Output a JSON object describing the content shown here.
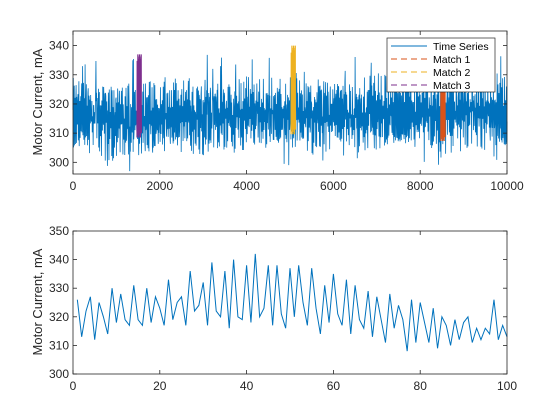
{
  "colors": {
    "series": "#0072bd",
    "match1": "#d95319",
    "match2": "#edb120",
    "match3": "#7e2f8e",
    "axis": "#262626",
    "background": "#ffffff"
  },
  "chart_data": [
    {
      "type": "line",
      "title": "",
      "xlabel": "",
      "ylabel": "Motor Current, mA",
      "xlim": [
        0,
        10000
      ],
      "ylim": [
        296,
        345
      ],
      "xticks": [
        0,
        2000,
        4000,
        6000,
        8000,
        10000
      ],
      "yticks": [
        300,
        310,
        320,
        330,
        340
      ],
      "xtick_labels": [
        "0",
        "2000",
        "4000",
        "6000",
        "8000",
        "10000"
      ],
      "ytick_labels": [
        "300",
        "310",
        "320",
        "330",
        "340"
      ],
      "grid": false,
      "legend": {
        "placement": "top-right",
        "entries": [
          "Time Series",
          "Match 1",
          "Match 2",
          "Match 3"
        ]
      },
      "series": [
        {
          "name": "Time Series",
          "style": "solid",
          "color": "#0072bd",
          "n_points": 10000,
          "value_range": [
            297,
            345
          ],
          "typical_range": [
            303,
            330
          ],
          "envelope_x": [
            0,
            1000,
            2000,
            3000,
            4000,
            5000,
            6000,
            7000,
            8000,
            9000,
            10000
          ],
          "envelope_high": [
            330,
            330,
            329,
            331,
            331,
            330,
            331,
            331,
            330,
            335,
            330
          ],
          "envelope_low": [
            302,
            300,
            300,
            302,
            302,
            302,
            302,
            302,
            302,
            303,
            302
          ]
        },
        {
          "name": "Match 1",
          "style": "dashed",
          "color": "#d95319",
          "x_range": [
            8475,
            8575
          ],
          "y_range": [
            306,
            332
          ]
        },
        {
          "name": "Match 2",
          "style": "dashed",
          "color": "#edb120",
          "x_range": [
            5025,
            5125
          ],
          "y_range": [
            308,
            340
          ]
        },
        {
          "name": "Match 3",
          "style": "dashed",
          "color": "#7e2f8e",
          "x_range": [
            1475,
            1575
          ],
          "y_range": [
            307,
            337
          ]
        }
      ]
    },
    {
      "type": "line",
      "title": "",
      "xlabel": "",
      "ylabel": "Motor Current, mA",
      "xlim": [
        0,
        100
      ],
      "ylim": [
        300,
        350
      ],
      "xticks": [
        0,
        20,
        40,
        60,
        80,
        100
      ],
      "yticks": [
        300,
        310,
        320,
        330,
        340,
        350
      ],
      "xtick_labels": [
        "0",
        "20",
        "40",
        "60",
        "80",
        "100"
      ],
      "ytick_labels": [
        "300",
        "310",
        "320",
        "330",
        "340",
        "350"
      ],
      "grid": false,
      "series": [
        {
          "name": "",
          "color": "#0072bd",
          "x": [
            1,
            2,
            3,
            4,
            5,
            6,
            7,
            8,
            9,
            10,
            11,
            12,
            13,
            14,
            15,
            16,
            17,
            18,
            19,
            20,
            21,
            22,
            23,
            24,
            25,
            26,
            27,
            28,
            29,
            30,
            31,
            32,
            33,
            34,
            35,
            36,
            37,
            38,
            39,
            40,
            41,
            42,
            43,
            44,
            45,
            46,
            47,
            48,
            49,
            50,
            51,
            52,
            53,
            54,
            55,
            56,
            57,
            58,
            59,
            60,
            61,
            62,
            63,
            64,
            65,
            66,
            67,
            68,
            69,
            70,
            71,
            72,
            73,
            74,
            75,
            76,
            77,
            78,
            79,
            80,
            81,
            82,
            83,
            84,
            85,
            86,
            87,
            88,
            89,
            90,
            91,
            92,
            93,
            94,
            95,
            96,
            97,
            98,
            99,
            100
          ],
          "y": [
            326,
            313,
            322,
            327,
            312,
            325,
            320,
            314,
            330,
            318,
            328,
            319,
            317,
            331,
            319,
            317,
            330,
            318,
            327,
            323,
            317,
            333,
            319,
            325,
            327,
            317,
            336,
            322,
            324,
            332,
            317,
            339,
            322,
            320,
            336,
            316,
            340,
            320,
            319,
            338,
            318,
            342,
            320,
            323,
            338,
            317,
            338,
            321,
            316,
            337,
            320,
            338,
            325,
            317,
            337,
            323,
            314,
            331,
            318,
            335,
            321,
            317,
            333,
            314,
            331,
            319,
            316,
            329,
            313,
            327,
            319,
            311,
            328,
            316,
            324,
            319,
            308,
            326,
            311,
            325,
            318,
            311,
            323,
            309,
            320,
            317,
            310,
            319,
            312,
            318,
            320,
            311,
            316,
            312,
            316,
            314,
            326,
            312,
            317,
            313
          ]
        }
      ]
    }
  ]
}
